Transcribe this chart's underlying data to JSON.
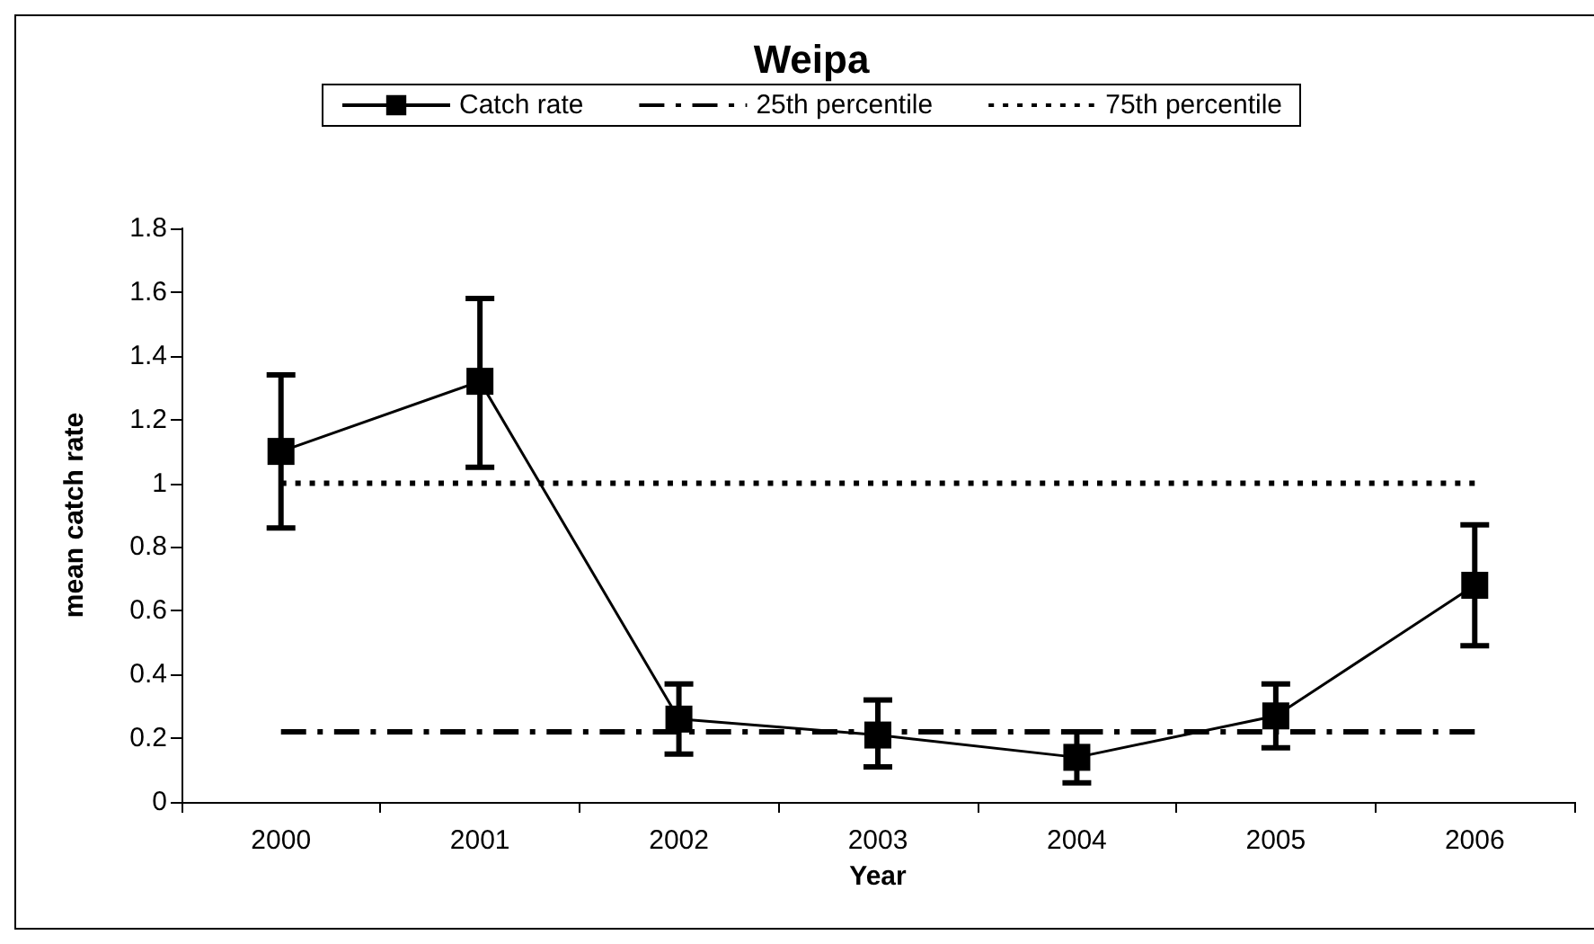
{
  "chart_data": {
    "type": "line",
    "title": "Weipa",
    "xlabel": "Year",
    "ylabel": "mean catch rate",
    "categories": [
      "2000",
      "2001",
      "2002",
      "2003",
      "2004",
      "2005",
      "2006"
    ],
    "ylim": [
      0,
      1.8
    ],
    "yticks": [
      0,
      0.2,
      0.4,
      0.6,
      0.8,
      1,
      1.2,
      1.4,
      1.6,
      1.8
    ],
    "grid": false,
    "legend": "top",
    "series": [
      {
        "name": "Catch rate",
        "color": "#000000",
        "marker": "square",
        "line_style": "solid",
        "values": [
          1.1,
          1.32,
          0.26,
          0.21,
          0.14,
          0.27,
          0.68
        ],
        "errors": [
          [
            0.86,
            1.34
          ],
          [
            1.05,
            1.58
          ],
          [
            0.15,
            0.37
          ],
          [
            0.11,
            0.32
          ],
          [
            0.06,
            0.22
          ],
          [
            0.17,
            0.37
          ],
          [
            0.49,
            0.87
          ]
        ]
      },
      {
        "name": "25th percentile",
        "color": "#000000",
        "marker": "none",
        "line_style": "dashdot",
        "values": [
          0.22,
          0.22,
          0.22,
          0.22,
          0.22,
          0.22,
          0.22
        ]
      },
      {
        "name": "75th percentile",
        "color": "#000000",
        "marker": "none",
        "line_style": "dotted",
        "values": [
          1,
          1,
          1,
          1,
          1,
          1,
          1
        ]
      }
    ]
  }
}
